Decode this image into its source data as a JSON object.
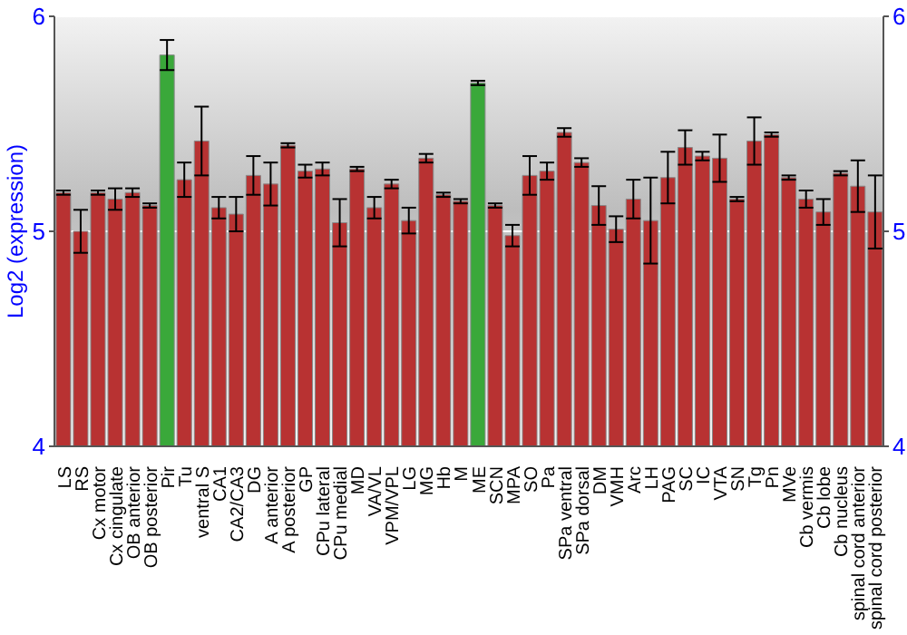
{
  "chart_data": {
    "type": "bar",
    "ylabel": "Log2 (expression)",
    "categories": [
      "LS",
      "RS",
      "Cx motor",
      "Cx cingulate",
      "OB anterior",
      "OB posterior",
      "Pir",
      "Tu",
      "ventral S",
      "CA1",
      "CA2/CA3",
      "DG",
      "A anterior",
      "A posterior",
      "GP",
      "CPu lateral",
      "CPu medial",
      "MD",
      "VA/VL",
      "VPM/VPL",
      "LG",
      "MG",
      "Hb",
      "M",
      "ME",
      "SCN",
      "MPA",
      "SO",
      "Pa",
      "SPa ventral",
      "SPa dorsal",
      "DM",
      "VMH",
      "Arc",
      "LH",
      "PAG",
      "SC",
      "IC",
      "VTA",
      "SN",
      "Tg",
      "Pn",
      "MVe",
      "Cb vermis",
      "Cb lobe",
      "Cb nucleus",
      "spinal cord anterior",
      "spinal cord posterior"
    ],
    "values": [
      5.18,
      5.0,
      5.18,
      5.15,
      5.18,
      5.12,
      5.82,
      5.24,
      5.42,
      5.11,
      5.08,
      5.26,
      5.22,
      5.4,
      5.28,
      5.29,
      5.04,
      5.29,
      5.11,
      5.22,
      5.05,
      5.34,
      5.17,
      5.14,
      5.69,
      5.12,
      4.98,
      5.26,
      5.28,
      5.46,
      5.32,
      5.12,
      5.01,
      5.15,
      5.05,
      5.25,
      5.39,
      5.35,
      5.34,
      5.15,
      5.42,
      5.45,
      5.25,
      5.15,
      5.09,
      5.27,
      5.21,
      5.09
    ],
    "errors": [
      0.01,
      0.1,
      0.01,
      0.05,
      0.02,
      0.01,
      0.07,
      0.08,
      0.16,
      0.05,
      0.08,
      0.09,
      0.1,
      0.01,
      0.03,
      0.03,
      0.11,
      0.01,
      0.05,
      0.02,
      0.06,
      0.02,
      0.01,
      0.01,
      0.01,
      0.01,
      0.05,
      0.09,
      0.04,
      0.02,
      0.02,
      0.09,
      0.06,
      0.09,
      0.2,
      0.12,
      0.08,
      0.02,
      0.11,
      0.01,
      0.11,
      0.01,
      0.01,
      0.04,
      0.06,
      0.01,
      0.12,
      0.17
    ],
    "colors": [
      "#b83232",
      "#b83232",
      "#b83232",
      "#b83232",
      "#b83232",
      "#b83232",
      "#3aa83a",
      "#b83232",
      "#b83232",
      "#b83232",
      "#b83232",
      "#b83232",
      "#b83232",
      "#b83232",
      "#b83232",
      "#b83232",
      "#b83232",
      "#b83232",
      "#b83232",
      "#b83232",
      "#b83232",
      "#b83232",
      "#b83232",
      "#b83232",
      "#3aa83a",
      "#b83232",
      "#b83232",
      "#b83232",
      "#b83232",
      "#b83232",
      "#b83232",
      "#b83232",
      "#b83232",
      "#b83232",
      "#b83232",
      "#b83232",
      "#b83232",
      "#b83232",
      "#b83232",
      "#b83232",
      "#b83232",
      "#b83232",
      "#b83232",
      "#b83232",
      "#b83232",
      "#b83232",
      "#b83232",
      "#b83232"
    ],
    "ylim": [
      4,
      6
    ],
    "yticks": [
      4,
      5,
      6
    ],
    "y2lim": [
      4,
      6
    ],
    "y2ticks": [
      4,
      5,
      6
    ],
    "grid": "y"
  }
}
